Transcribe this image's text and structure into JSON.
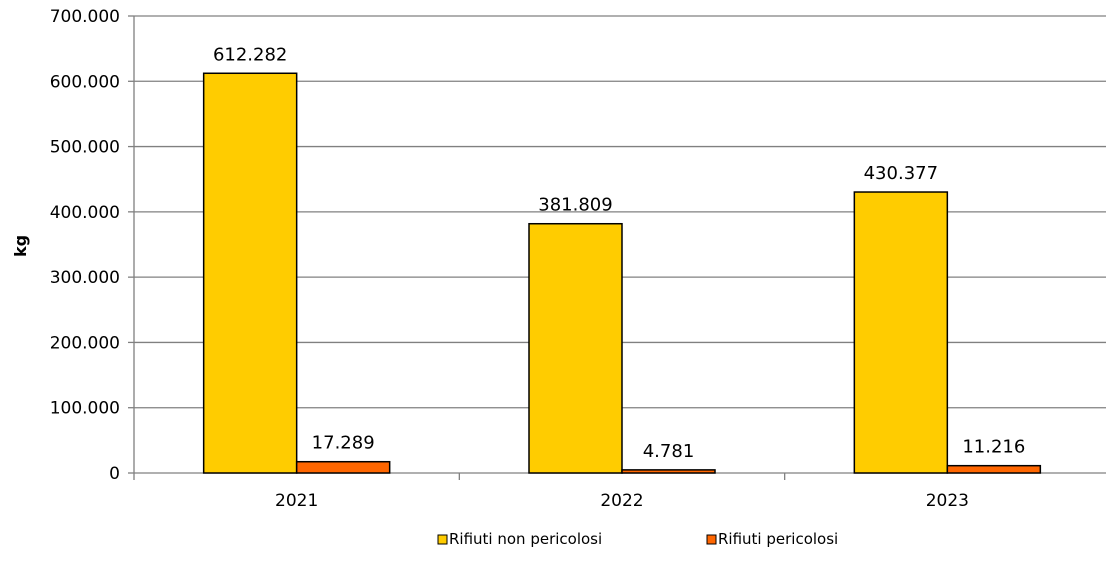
{
  "chart_data": {
    "type": "bar",
    "title": "",
    "xlabel": "",
    "ylabel": "kg",
    "ylim": [
      0,
      700000
    ],
    "yticks": [
      0,
      100000,
      200000,
      300000,
      400000,
      500000,
      600000,
      700000
    ],
    "ytick_labels": [
      "0",
      "100.000",
      "200.000",
      "300.000",
      "400.000",
      "500.000",
      "600.000",
      "700.000"
    ],
    "categories": [
      "2021",
      "2022",
      "2023"
    ],
    "grid": true,
    "legend_position": "bottom",
    "series": [
      {
        "name": "Rifiuti non pericolosi",
        "color": "#FFCC00",
        "values": [
          612282,
          381809,
          430377
        ],
        "labels": [
          "612.282",
          "381.809",
          "430.377"
        ]
      },
      {
        "name": "Rifiuti pericolosi",
        "color": "#FF6600",
        "values": [
          17289,
          4781,
          11216
        ],
        "labels": [
          "17.289",
          "4.781",
          "11.216"
        ]
      }
    ]
  }
}
